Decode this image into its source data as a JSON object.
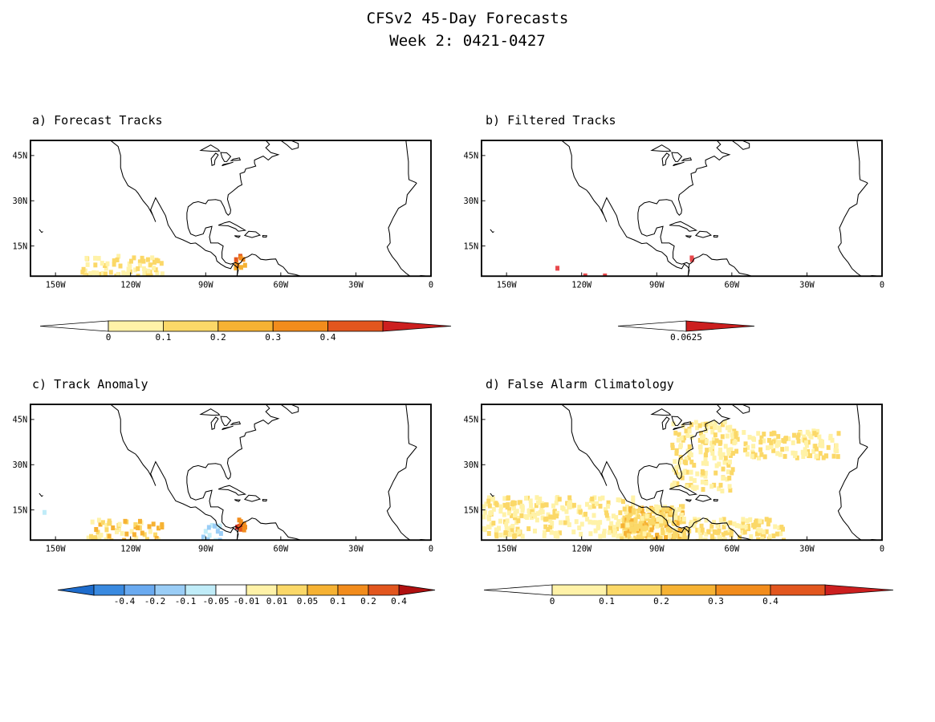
{
  "title_line1": "CFSv2 45-Day Forecasts",
  "title_line2": "Week 2: 0421-0427",
  "lon_labels": [
    "150W",
    "120W",
    "90W",
    "60W",
    "30W",
    "0"
  ],
  "lat_labels": [
    "45N",
    "30N",
    "15N"
  ],
  "panels": [
    {
      "id": "a",
      "title": "a) Forecast Tracks",
      "colorbar": {
        "labels": [
          "0",
          "0.1",
          "0.2",
          "0.3",
          "0.4"
        ],
        "colors": [
          "#fff2a8",
          "#fbd868",
          "#f6b233",
          "#f28c1c",
          "#e2561e",
          "#cc1f1f"
        ]
      }
    },
    {
      "id": "b",
      "title": "b) Filtered Tracks",
      "colorbar": {
        "labels": [
          "0.0625"
        ],
        "colors": [
          "#e8484c",
          "#cc1f1f"
        ]
      }
    },
    {
      "id": "c",
      "title": "c) Track Anomaly",
      "colorbar": {
        "labels": [
          "-0.4",
          "-0.2",
          "-0.1",
          "-0.05",
          "-0.01",
          "0.01",
          "0.05",
          "0.1",
          "0.2",
          "0.4"
        ],
        "colors": [
          "#1e6ccc",
          "#3a8ae0",
          "#6aaaf0",
          "#9acdf6",
          "#c0ecf8",
          "#ffffff",
          "#fff2a8",
          "#fbd868",
          "#f6b233",
          "#f28c1c",
          "#e2561e",
          "#b01010"
        ]
      }
    },
    {
      "id": "d",
      "title": "d) False Alarm Climatology",
      "colorbar": {
        "labels": [
          "0",
          "0.1",
          "0.2",
          "0.3",
          "0.4"
        ],
        "colors": [
          "#fff2a8",
          "#fbd868",
          "#f6b233",
          "#f28c1c",
          "#e2561e",
          "#cc1f1f"
        ]
      }
    }
  ]
}
